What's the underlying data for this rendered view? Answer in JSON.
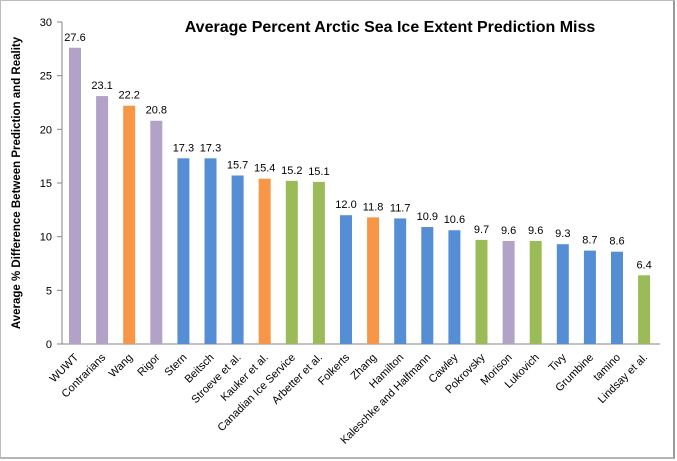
{
  "chart_data": {
    "type": "bar",
    "title": "Average Percent Arctic Sea Ice Extent Prediction Miss",
    "xlabel": "",
    "ylabel": "Average % Difference Between Prediction and Reality",
    "ylim": [
      0,
      30
    ],
    "yticks": [
      0,
      5,
      10,
      15,
      20,
      25,
      30
    ],
    "grid": false,
    "legend": "none",
    "categories": [
      "WUWT",
      "Contrarians",
      "Wang",
      "Rigor",
      "Stern",
      "Beitsch",
      "Stroeve et al.",
      "Kauker et al.",
      "Canadian Ice Service",
      "Arbetter et al.",
      "Folkerts",
      "Zhang",
      "Hamilton",
      "Kaleschke and Halfmann",
      "Cawley",
      "Pokrovsky",
      "Morison",
      "Lukovich",
      "Tivy",
      "Grumbine",
      "tamino",
      "Lindsay et al."
    ],
    "values": [
      27.6,
      23.1,
      22.2,
      20.8,
      17.3,
      17.3,
      15.7,
      15.4,
      15.2,
      15.1,
      12.0,
      11.8,
      11.7,
      10.9,
      10.6,
      9.7,
      9.6,
      9.6,
      9.3,
      8.7,
      8.6,
      6.4
    ],
    "value_labels": [
      "27.6",
      "23.1",
      "22.2",
      "20.8",
      "17.3",
      "17.3",
      "15.7",
      "15.4",
      "15.2",
      "15.1",
      "12.0",
      "11.8",
      "11.7",
      "10.9",
      "10.6",
      "9.7",
      "9.6",
      "9.6",
      "9.3",
      "8.7",
      "8.6",
      "6.4"
    ],
    "bar_colors": [
      "#b3a2c7",
      "#b3a2c7",
      "#f79646",
      "#b3a2c7",
      "#558ed5",
      "#558ed5",
      "#558ed5",
      "#f79646",
      "#9bbb59",
      "#9bbb59",
      "#558ed5",
      "#f79646",
      "#558ed5",
      "#558ed5",
      "#558ed5",
      "#9bbb59",
      "#b3a2c7",
      "#9bbb59",
      "#558ed5",
      "#558ed5",
      "#558ed5",
      "#9bbb59"
    ]
  }
}
